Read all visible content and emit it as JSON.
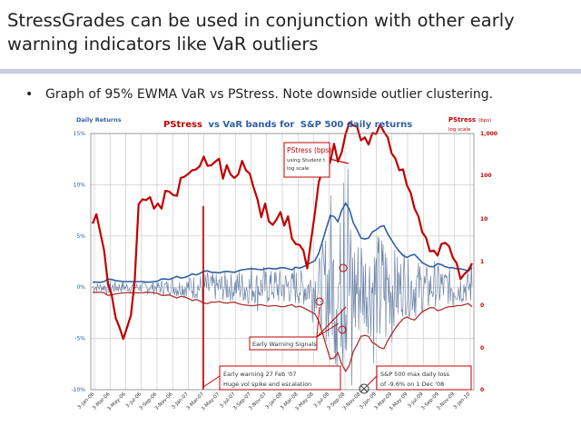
{
  "slide": {
    "title_line1": "StressGrades can be used in conjunction with other early",
    "title_line2": "warning indicators like VaR outliers",
    "bullet": "Graph of 95% EWMA VaR vs PStress. Note downside outlier clustering."
  },
  "chart_data": {
    "type": "line",
    "title_parts": [
      "PStress",
      "vs VaR bands for",
      "S&P 500 daily returns"
    ],
    "left_axis_label": "Daily Returns",
    "right_axis_label": "PStress",
    "right_axis_unit": "(bps)",
    "right_axis_scale": "log scale",
    "left_ticks": [
      "15%",
      "10%",
      "5%",
      "0%",
      "-5%",
      "-10%"
    ],
    "left_tick_values": [
      15,
      10,
      5,
      0,
      -5,
      -10
    ],
    "right_ticks": [
      "1,000",
      "100",
      "10",
      "1",
      "0",
      "0",
      "0"
    ],
    "ylim_left": [
      -10,
      15
    ],
    "x_ticks": [
      "3-Jan-06",
      "3-Mar-06",
      "3-May-06",
      "3-Jul-06",
      "3-Sep-06",
      "3-Nov-06",
      "3-Jan-07",
      "3-Mar-07",
      "3-May-07",
      "3-Jul-07",
      "3-Sep-07",
      "3-Nov-07",
      "3-Jan-08",
      "3-Mar-08",
      "3-May-08",
      "3-Jul-08",
      "3-Sep-08",
      "3-Nov-08",
      "3-Jan-09",
      "3-Mar-09",
      "3-May-09",
      "3-Jul-09",
      "3-Sep-09",
      "3-Nov-09",
      "3-Jan-10"
    ],
    "grid": true,
    "colors": {
      "pstress": "#c00000",
      "var_bands": "#2e5fa6",
      "returns": "#6f86a8",
      "title_blue": "#2e5fa6",
      "title_red": "#c00000"
    },
    "series": [
      {
        "key": "pstress",
        "values": [
          0.95,
          1.05,
          0.75,
          0.2,
          -0.45,
          -0.85,
          -1.25,
          -1.6,
          -1.75,
          -1.6,
          -1.2,
          -0.5,
          1.4,
          1.4,
          1.5,
          1.45,
          1.3,
          1.3,
          1.3,
          1.6,
          1.7,
          1.5,
          1.6,
          1.9,
          2.05,
          2.0,
          2.2,
          2.1,
          2.3,
          2.4,
          2.3,
          2.2,
          2.4,
          2.35,
          2.0,
          2.2,
          2.1,
          1.9,
          2.1,
          2.3,
          2.2,
          2.0,
          1.8,
          1.4,
          1.1,
          1.3,
          1.0,
          0.8,
          1.05,
          1.1,
          0.9,
          1.0,
          0.6,
          0.35,
          0.45,
          0.2,
          -0.1,
          0.45,
          1.2,
          1.8,
          2.2,
          2.1,
          2.4,
          2.7,
          2.4,
          2.5,
          3.05,
          3.2,
          3.25,
          3.1,
          2.9,
          2.85,
          2.8,
          2.95,
          3.05,
          3.15,
          3.1,
          2.85,
          2.6,
          2.35,
          2.2,
          2.1,
          1.85,
          1.55,
          1.3,
          1.0,
          0.75,
          0.5,
          0.3,
          0.2,
          0.2,
          0.35,
          0.5,
          0.3,
          0.15,
          -0.1,
          -0.35,
          -0.35,
          -0.15,
          -0.1
        ]
      },
      {
        "key": "var_upper",
        "values": [
          0.5,
          0.5,
          0.48,
          0.55,
          0.8,
          0.75,
          0.65,
          0.6,
          0.55,
          0.55,
          0.55,
          0.55,
          0.55,
          0.55,
          0.5,
          0.5,
          0.55,
          0.6,
          0.8,
          0.8,
          0.75,
          0.9,
          1.05,
          0.9,
          0.95,
          1.1,
          1.3,
          1.2,
          1.35,
          1.55,
          1.6,
          1.45,
          1.45,
          1.4,
          1.5,
          1.55,
          1.5,
          1.45,
          1.6,
          1.7,
          1.75,
          1.8,
          1.8,
          1.75,
          1.7,
          1.8,
          1.85,
          1.8,
          1.8,
          1.9,
          1.9,
          1.8,
          1.7,
          1.95,
          1.85,
          2.0,
          2.2,
          2.4,
          2.6,
          3.3,
          4.5,
          5.8,
          7.0,
          6.9,
          6.4,
          7.5,
          8.2,
          7.6,
          6.3,
          5.6,
          4.8,
          4.7,
          4.8,
          5.4,
          5.6,
          5.9,
          6.0,
          5.2,
          4.6,
          4.0,
          3.5,
          3.1,
          2.9,
          3.1,
          3.2,
          2.8,
          2.4,
          2.2,
          2.0,
          2.0,
          2.3,
          2.2,
          2.0,
          1.9,
          1.9,
          1.8,
          1.8,
          1.7,
          1.6,
          1.9
        ]
      },
      {
        "key": "var_lower",
        "values": [
          -0.5,
          -0.5,
          -0.48,
          -0.55,
          -0.8,
          -0.75,
          -0.65,
          -0.6,
          -0.55,
          -0.55,
          -0.55,
          -0.55,
          -0.55,
          -0.55,
          -0.5,
          -0.5,
          -0.55,
          -0.6,
          -0.8,
          -0.8,
          -0.75,
          -0.9,
          -1.05,
          -0.9,
          -0.95,
          -1.1,
          -1.3,
          -1.2,
          -1.35,
          -1.55,
          -1.6,
          -1.45,
          -1.45,
          -1.4,
          -1.5,
          -1.55,
          -1.5,
          -1.45,
          -1.6,
          -1.7,
          -1.75,
          -1.8,
          -1.8,
          -1.75,
          -1.7,
          -1.8,
          -1.85,
          -1.8,
          -1.8,
          -1.9,
          -1.9,
          -1.8,
          -1.7,
          -1.95,
          -1.85,
          -2.0,
          -2.2,
          -2.4,
          -2.6,
          -3.3,
          -4.5,
          -5.8,
          -7.0,
          -6.9,
          -6.4,
          -7.5,
          -8.2,
          -7.6,
          -6.3,
          -5.6,
          -4.8,
          -4.7,
          -4.8,
          -5.4,
          -5.6,
          -5.9,
          -6.0,
          -5.2,
          -4.6,
          -4.0,
          -3.5,
          -3.1,
          -2.9,
          -3.1,
          -3.2,
          -2.8,
          -2.4,
          -2.2,
          -2.0,
          -2.0,
          -2.3,
          -2.2,
          -2.0,
          -1.9,
          -1.9,
          -1.8,
          -1.8,
          -1.7,
          -1.6,
          -1.9
        ]
      }
    ],
    "annotations": {
      "pstress_box": [
        "PStress (bps)",
        "using Student t",
        "log scale"
      ],
      "early_warning_signals": "Early Warning Signals",
      "feb07_box": [
        "Early warning 27 Feb '07",
        "Huge vol spike and escalation"
      ],
      "dec08_box": [
        "S&P 500  max daily loss",
        "of -9.6% on 1 Dec '08"
      ]
    }
  }
}
